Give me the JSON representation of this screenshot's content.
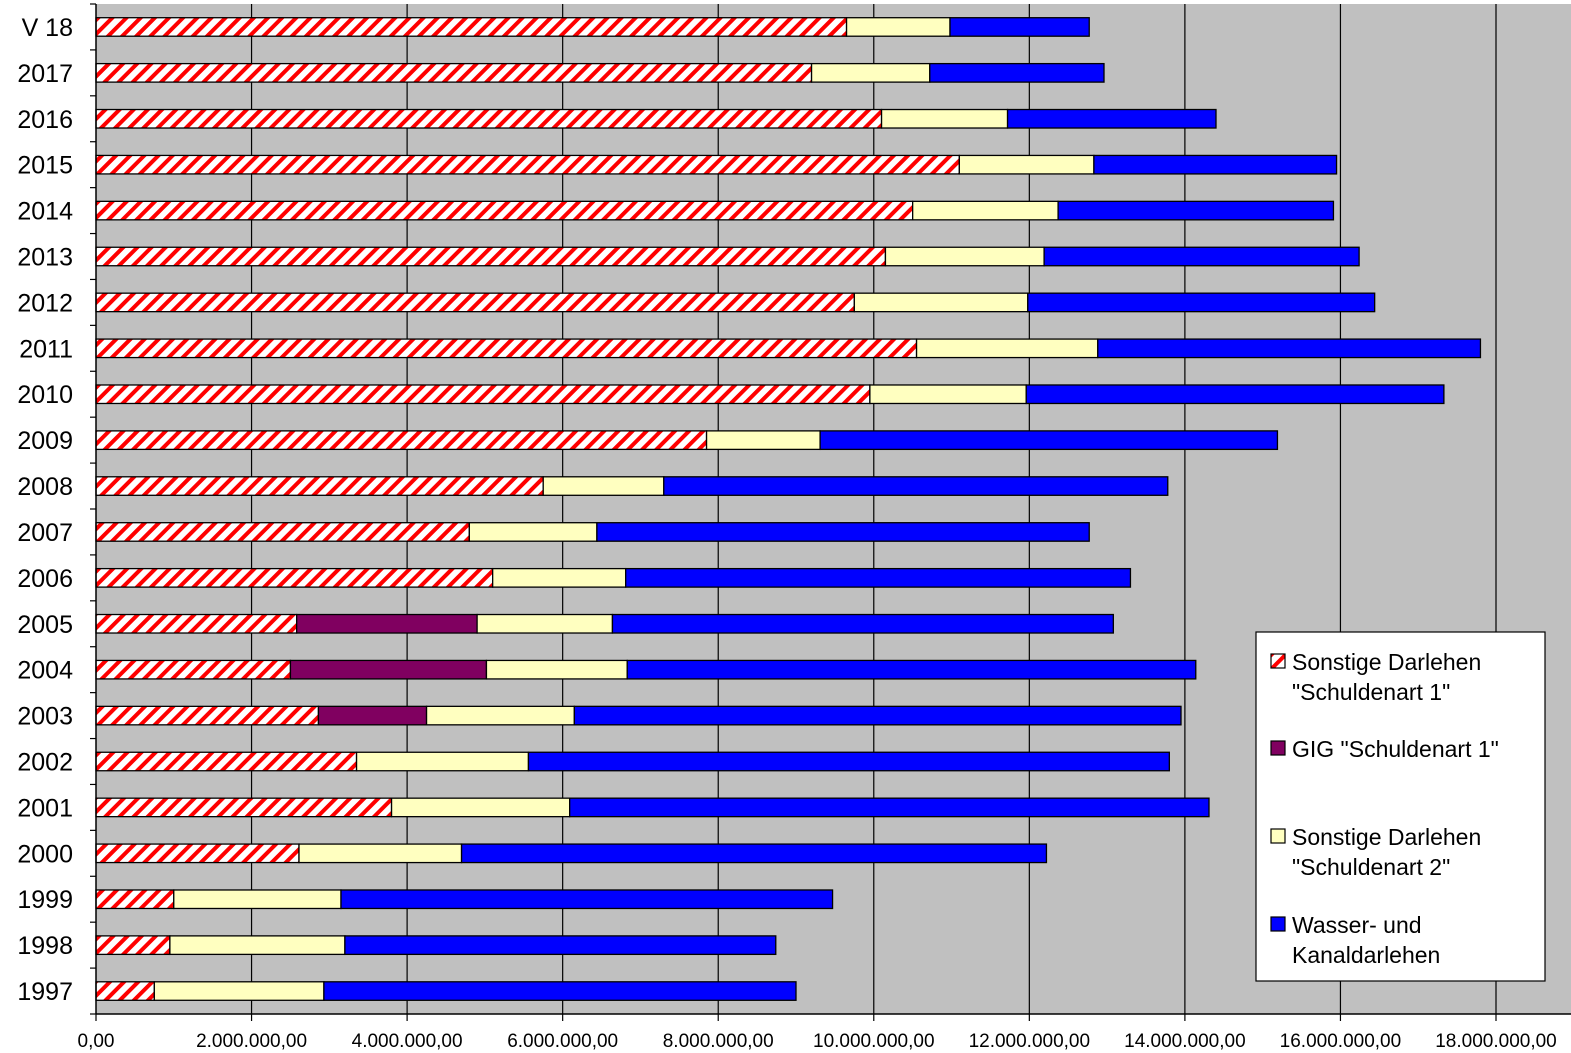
{
  "chart_data": {
    "type": "bar",
    "orientation": "horizontal",
    "stacked": true,
    "categories": [
      "V 18",
      "2017",
      "2016",
      "2015",
      "2014",
      "2013",
      "2012",
      "2011",
      "2010",
      "2009",
      "2008",
      "2007",
      "2006",
      "2005",
      "2004",
      "2003",
      "2002",
      "2001",
      "2000",
      "1999",
      "1998",
      "1997"
    ],
    "series": [
      {
        "name": "Sonstige Darlehen \"Schuldenart 1\"",
        "name_lines": [
          "Sonstige Darlehen",
          "\"Schuldenart 1\""
        ],
        "color": "#ff0000",
        "pattern": "hatch-red",
        "values": [
          9650000,
          9200000,
          10100000,
          11100000,
          10500000,
          10150000,
          9750000,
          10550000,
          9950000,
          7850000,
          5750000,
          4800000,
          5100000,
          2580000,
          2500000,
          2860000,
          3350000,
          3800000,
          2610000,
          1000000,
          950000,
          750000
        ]
      },
      {
        "name": "GIG \"Schuldenart 1\"",
        "name_lines": [
          "GIG \"Schuldenart 1\""
        ],
        "color": "#800060",
        "values": [
          0,
          0,
          0,
          0,
          0,
          0,
          0,
          0,
          0,
          0,
          0,
          0,
          0,
          2320000,
          2520000,
          1390000,
          0,
          0,
          0,
          0,
          0,
          0
        ]
      },
      {
        "name": "Sonstige Darlehen \"Schuldenart 2\"",
        "name_lines": [
          "Sonstige Darlehen",
          "\"Schuldenart 2\""
        ],
        "color": "#ffffc0",
        "values": [
          1330000,
          1520000,
          1620000,
          1730000,
          1870000,
          2040000,
          2230000,
          2330000,
          2010000,
          1460000,
          1550000,
          1640000,
          1710000,
          1740000,
          1810000,
          1900000,
          2210000,
          2290000,
          2090000,
          2150000,
          2250000,
          2180000
        ]
      },
      {
        "name": "Wasser- und Kanaldarlehen",
        "name_lines": [
          "Wasser- und",
          "Kanaldarlehen"
        ],
        "color": "#0000ff",
        "values": [
          1790000,
          2240000,
          2680000,
          3120000,
          3540000,
          4050000,
          4460000,
          4920000,
          5370000,
          5880000,
          6480000,
          6330000,
          6490000,
          6440000,
          7310000,
          7800000,
          8240000,
          8220000,
          7520000,
          6320000,
          5540000,
          6070000
        ]
      }
    ],
    "xlim": [
      0,
      18000000
    ],
    "xticks": [
      0,
      2000000,
      4000000,
      6000000,
      8000000,
      10000000,
      12000000,
      14000000,
      16000000,
      18000000
    ],
    "xtick_labels": [
      "0,00",
      "2.000.000,00",
      "4.000.000,00",
      "6.000.000,00",
      "8.000.000,00",
      "10.000.000,00",
      "12.000.000,00",
      "14.000.000,00",
      "16.000.000,00",
      "18.000.000,00"
    ],
    "title": "",
    "xlabel": "",
    "ylabel": "",
    "grid": "vertical",
    "plot_background": "#c0c0c0",
    "legend_position": "right"
  }
}
